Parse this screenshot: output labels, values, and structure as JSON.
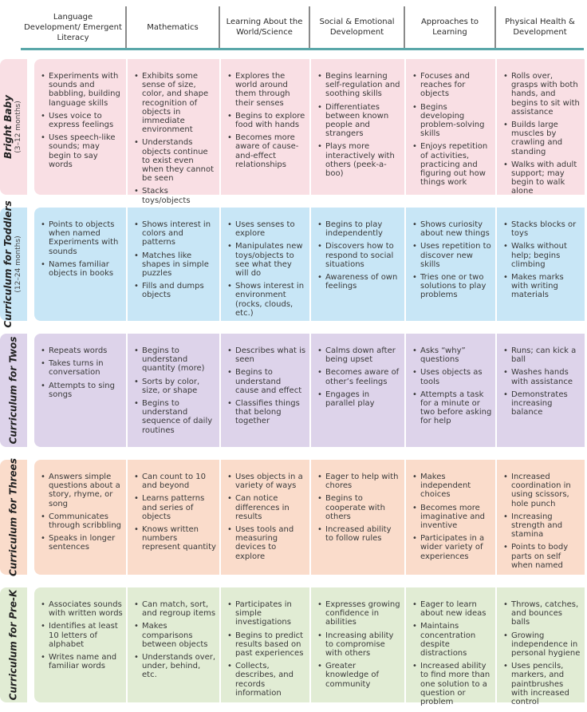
{
  "headers": [
    "Language Development/ Emergent Literacy",
    "Mathematics",
    "Learning About the World/Science",
    "Social & Emotional Development",
    "Approaches to Learning",
    "Physical Health & Development"
  ],
  "rows": [
    {
      "label": "Bright Baby",
      "age": "(3–12 months)",
      "cells": [
        [
          "Experiments with sounds and babbling, building language skills",
          "Uses voice to express feelings",
          "Uses speech-like sounds; may begin to say words"
        ],
        [
          "Exhibits some sense of size, color, and shape recognition of objects in immediate environment",
          "Understands objects continue to exist even when they cannot be seen",
          "Stacks toys/objects"
        ],
        [
          "Explores the world around them through their senses",
          "Begins to explore food with hands",
          "Becomes more aware of cause-and-effect relationships"
        ],
        [
          "Begins learning self-regulation and soothing skills",
          "Differentiates between known people and strangers",
          "Plays more interactively with others (peek-a-boo)"
        ],
        [
          "Focuses and reaches for objects",
          "Begins developing problem-solving skills",
          "Enjoys repetition of activities, practicing and figuring out how things work"
        ],
        [
          "Rolls over, grasps with both hands, and begins to sit with assistance",
          "Builds large muscles by crawling and standing",
          "Walks with adult support; may begin to walk alone"
        ]
      ]
    },
    {
      "label": "Curriculum for Toddlers",
      "age": "(12–24 months)",
      "cells": [
        [
          "Points to objects when named Experiments with sounds",
          "Names familiar objects in books"
        ],
        [
          "Shows interest in colors and patterns",
          "Matches like shapes in simple puzzles",
          "Fills and dumps objects"
        ],
        [
          "Uses senses to explore",
          "Manipulates new toys/objects to see what they will do",
          "Shows interest in environment (rocks, clouds, etc.)"
        ],
        [
          "Begins to play independently",
          "Discovers how to respond to social situations",
          "Awareness of own feelings"
        ],
        [
          "Shows curiosity about new things",
          "Uses repetition to discover new skills",
          "Tries one or two solutions to play problems"
        ],
        [
          "Stacks blocks or toys",
          "Walks without help; begins climbing",
          "Makes marks with writing materials"
        ]
      ]
    },
    {
      "label": "Curriculum for Twos",
      "age": "",
      "cells": [
        [
          "Repeats words",
          "Takes turns in conversation",
          "Attempts to sing songs"
        ],
        [
          "Begins to understand quantity (more)",
          "Sorts by color, size, or shape",
          "Begins to understand sequence of daily routines"
        ],
        [
          "Describes what is seen",
          "Begins to understand cause and effect",
          "Classifies things that belong together"
        ],
        [
          "Calms down after being upset",
          "Becomes aware of other’s feelings",
          "Engages in parallel play"
        ],
        [
          "Asks “why” questions",
          "Uses objects as tools",
          "Attempts a task for a minute or two before asking for help"
        ],
        [
          "Runs; can kick a ball",
          "Washes hands with assistance",
          "Demonstrates increasing balance"
        ]
      ]
    },
    {
      "label": "Curriculum for Threes",
      "age": "",
      "cells": [
        [
          "Answers simple questions about a story, rhyme, or song",
          "Communicates through scribbling",
          "Speaks in longer sentences"
        ],
        [
          "Can count to 10 and beyond",
          "Learns patterns and series of objects",
          "Knows written numbers represent quantity"
        ],
        [
          "Uses objects in a variety of ways",
          "Can notice differences in results",
          "Uses tools and measuring devices to explore"
        ],
        [
          "Eager to help with chores",
          "Begins to cooperate with others",
          "Increased ability to follow rules"
        ],
        [
          "Makes independent choices",
          "Becomes more imaginative and inventive",
          "Participates in a wider variety of experiences"
        ],
        [
          "Increased coordination in using scissors, hole punch",
          "Increasing strength and stamina",
          "Points to body parts on self when named"
        ]
      ]
    },
    {
      "label": "Curriculum for Pre-K",
      "age": "",
      "cells": [
        [
          "Associates sounds with written words",
          "Identifies at least 10 letters of alphabet",
          "Writes name and familiar words"
        ],
        [
          "Can match, sort, and regroup items",
          "Makes comparisons between objects",
          "Understands over, under, behind, etc."
        ],
        [
          "Participates in simple investigations",
          "Begins to predict results based on past experiences",
          "Collects, describes, and records information"
        ],
        [
          "Expresses growing confidence in abilities",
          "Increasing ability to compromise with others",
          "Greater knowledge of community"
        ],
        [
          "Eager to learn about new ideas",
          "Maintains concentration despite distractions",
          "Increased ability to find more than one solution to a question or problem"
        ],
        [
          "Throws, catches, and bounces balls",
          "Growing independence in personal hygiene",
          "Uses pencils, markers, and paintbrushes with increased control"
        ]
      ]
    }
  ]
}
